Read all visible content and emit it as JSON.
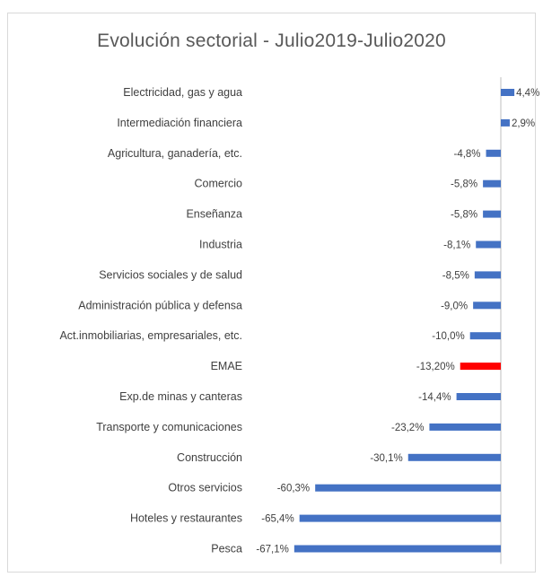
{
  "chart_data": {
    "type": "bar",
    "orientation": "horizontal",
    "title": "Evolución sectorial - Julio2019-Julio2020",
    "xlabel": "",
    "ylabel": "",
    "grid": false,
    "legend": "none",
    "xlim": [
      -70,
      6
    ],
    "categories": [
      "Electricidad, gas y agua",
      "Intermediación financiera",
      "Agricultura, ganadería, etc.",
      "Comercio",
      "Enseñanza",
      "Industria",
      "Servicios sociales y de salud",
      "Administración pública y defensa",
      "Act.inmobiliarias, empresariales, etc.",
      "EMAE",
      "Exp.de minas y canteras",
      "Transporte y comunicaciones",
      "Construcción",
      "Otros servicios",
      "Hoteles y restaurantes",
      "Pesca"
    ],
    "values": [
      4.4,
      2.9,
      -4.8,
      -5.8,
      -5.8,
      -8.1,
      -8.5,
      -9.0,
      -10.0,
      -13.2,
      -14.4,
      -23.2,
      -30.1,
      -60.3,
      -65.4,
      -67.1
    ],
    "data_labels": [
      "4,4%",
      "2,9%",
      "-4,8%",
      "-5,8%",
      "-5,8%",
      "-8,1%",
      "-8,5%",
      "-9,0%",
      "-10,0%",
      "-13,20%",
      "-14,4%",
      "-23,2%",
      "-30,1%",
      "-60,3%",
      "-65,4%",
      "-67,1%"
    ],
    "colors": {
      "bar": "#4472c4",
      "highlight": "#ff0000",
      "axis": "#bfbfbf"
    },
    "highlight_category": "EMAE"
  }
}
